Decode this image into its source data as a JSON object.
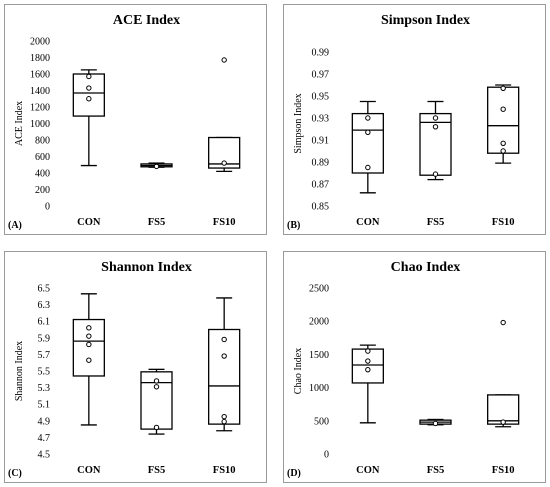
{
  "chart_data": [
    {
      "type": "boxplot",
      "panel_label": "(A)",
      "title": "ACE Index",
      "ylabel": "ACE Index",
      "xlabel": "",
      "categories": [
        "CON",
        "FS5",
        "FS10"
      ],
      "ylim": [
        0,
        2000
      ],
      "yticks": [
        "0",
        "200",
        "400",
        "600",
        "800",
        "1000",
        "1200",
        "1400",
        "1600",
        "1800",
        "2000"
      ],
      "boxes": [
        {
          "min": 490,
          "q1": 1090,
          "median": 1370,
          "q3": 1600,
          "max": 1650,
          "points": [
            1300,
            1430,
            1570
          ]
        },
        {
          "min": 470,
          "q1": 475,
          "median": 490,
          "q3": 510,
          "max": 520,
          "points": [
            480
          ]
        },
        {
          "min": 420,
          "q1": 460,
          "median": 510,
          "q3": 830,
          "max": 830,
          "points": [
            520,
            1770
          ]
        }
      ]
    },
    {
      "type": "boxplot",
      "panel_label": "(B)",
      "title": "Simpson Index",
      "ylabel": "Simpson Index",
      "xlabel": "",
      "categories": [
        "CON",
        "FS5",
        "FS10"
      ],
      "ylim": [
        0.85,
        1.0
      ],
      "yticks": [
        "0.85",
        "0.87",
        "0.89",
        "0.91",
        "0.93",
        "0.95",
        "0.97",
        "0.99"
      ],
      "boxes": [
        {
          "min": 0.862,
          "q1": 0.88,
          "median": 0.919,
          "q3": 0.934,
          "max": 0.945,
          "points": [
            0.885,
            0.917,
            0.93
          ]
        },
        {
          "min": 0.874,
          "q1": 0.878,
          "median": 0.926,
          "q3": 0.934,
          "max": 0.945,
          "points": [
            0.879,
            0.922,
            0.93
          ]
        },
        {
          "min": 0.889,
          "q1": 0.898,
          "median": 0.923,
          "q3": 0.958,
          "max": 0.96,
          "points": [
            0.9,
            0.907,
            0.938,
            0.957
          ]
        }
      ]
    },
    {
      "type": "boxplot",
      "panel_label": "(C)",
      "title": "Shannon Index",
      "ylabel": "Shannon Index",
      "xlabel": "",
      "categories": [
        "CON",
        "FS5",
        "FS10"
      ],
      "ylim": [
        4.5,
        6.5
      ],
      "yticks": [
        "4.5",
        "4.7",
        "4.9",
        "5.1",
        "5.3",
        "5.5",
        "5.7",
        "5.9",
        "6.1",
        "6.3",
        "6.5"
      ],
      "boxes": [
        {
          "min": 4.85,
          "q1": 5.44,
          "median": 5.86,
          "q3": 6.12,
          "max": 6.43,
          "points": [
            5.63,
            5.82,
            5.92,
            6.02
          ]
        },
        {
          "min": 4.74,
          "q1": 4.8,
          "median": 5.36,
          "q3": 5.49,
          "max": 5.52,
          "points": [
            4.82,
            5.31,
            5.38
          ]
        },
        {
          "min": 4.78,
          "q1": 4.86,
          "median": 5.32,
          "q3": 6.0,
          "max": 6.38,
          "points": [
            4.89,
            4.95,
            5.68,
            5.88
          ]
        }
      ]
    },
    {
      "type": "boxplot",
      "panel_label": "(D)",
      "title": "Chao Index",
      "ylabel": "Chao Index",
      "xlabel": "",
      "categories": [
        "CON",
        "FS5",
        "FS10"
      ],
      "ylim": [
        0,
        2500
      ],
      "yticks": [
        "0",
        "500",
        "1000",
        "1500",
        "2000",
        "2500"
      ],
      "boxes": [
        {
          "min": 470,
          "q1": 1070,
          "median": 1340,
          "q3": 1580,
          "max": 1640,
          "points": [
            1270,
            1400,
            1550
          ]
        },
        {
          "min": 440,
          "q1": 450,
          "median": 480,
          "q3": 510,
          "max": 520,
          "points": [
            460
          ]
        },
        {
          "min": 410,
          "q1": 450,
          "median": 500,
          "q3": 890,
          "max": 890,
          "points": [
            480,
            1980
          ]
        }
      ]
    }
  ]
}
